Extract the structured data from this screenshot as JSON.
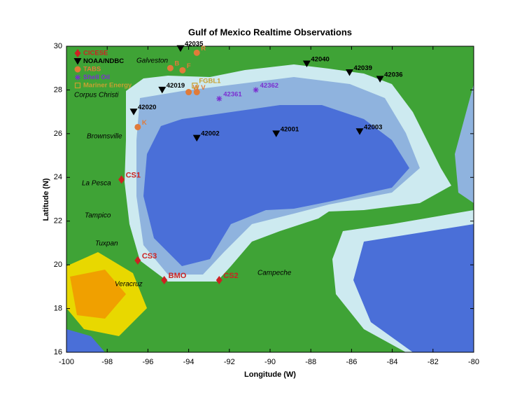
{
  "chart_data": {
    "type": "scatter",
    "title": "Gulf of Mexico Realtime Observations",
    "xlabel": "Longitude (W)",
    "ylabel": "Latitude (N)",
    "xlim": [
      -100,
      -80
    ],
    "ylim": [
      16,
      30
    ],
    "xticks": [
      -100,
      -98,
      -96,
      -94,
      -92,
      -90,
      -88,
      -86,
      -84,
      -82,
      -80
    ],
    "yticks": [
      16,
      18,
      20,
      22,
      24,
      26,
      28,
      30
    ],
    "legend": "upper left",
    "annotations": [
      "Galveston",
      "Corpus Christi",
      "Brownsville",
      "La Pesca",
      "Tampico",
      "Tuxpan",
      "Veracruz",
      "Campeche"
    ],
    "series": [
      {
        "name": "CICESE",
        "color": "#cc2222",
        "marker": "diamond",
        "labels": [
          "CS1",
          "CS3",
          "BMO",
          "CS2"
        ],
        "x": [
          -97.3,
          -96.5,
          -95.2,
          -92.5
        ],
        "y": [
          23.9,
          20.2,
          19.3,
          19.3
        ]
      },
      {
        "name": "NOAA/NDBC",
        "color": "#000000",
        "marker": "triangle-down",
        "labels": [
          "42035",
          "42040",
          "42039",
          "42036",
          "42019",
          "42020",
          "42002",
          "42001",
          "42003"
        ],
        "x": [
          -94.4,
          -88.2,
          -86.1,
          -84.6,
          -95.3,
          -96.7,
          -93.6,
          -89.7,
          -85.6
        ],
        "y": [
          29.9,
          29.2,
          28.8,
          28.5,
          28.0,
          27.0,
          25.8,
          26.0,
          26.1
        ]
      },
      {
        "name": "TABS",
        "color": "#e07b39",
        "marker": "circle",
        "labels": [
          "R",
          "B",
          "F",
          "W",
          "V",
          "K"
        ],
        "x": [
          -93.6,
          -94.9,
          -94.3,
          -94.0,
          -93.6,
          -96.5
        ],
        "y": [
          29.7,
          29.0,
          28.9,
          27.9,
          27.9,
          26.3
        ]
      },
      {
        "name": "Shell Oil",
        "color": "#7b2fd0",
        "marker": "asterisk",
        "labels": [
          "42361",
          "42362"
        ],
        "x": [
          -92.5,
          -90.7
        ],
        "y": [
          27.6,
          28.0
        ]
      },
      {
        "name": "Mariner Energy",
        "color": "#c8a030",
        "marker": "square",
        "labels": [
          "FGBL1"
        ],
        "x": [
          -93.7
        ],
        "y": [
          28.2
        ]
      }
    ]
  }
}
